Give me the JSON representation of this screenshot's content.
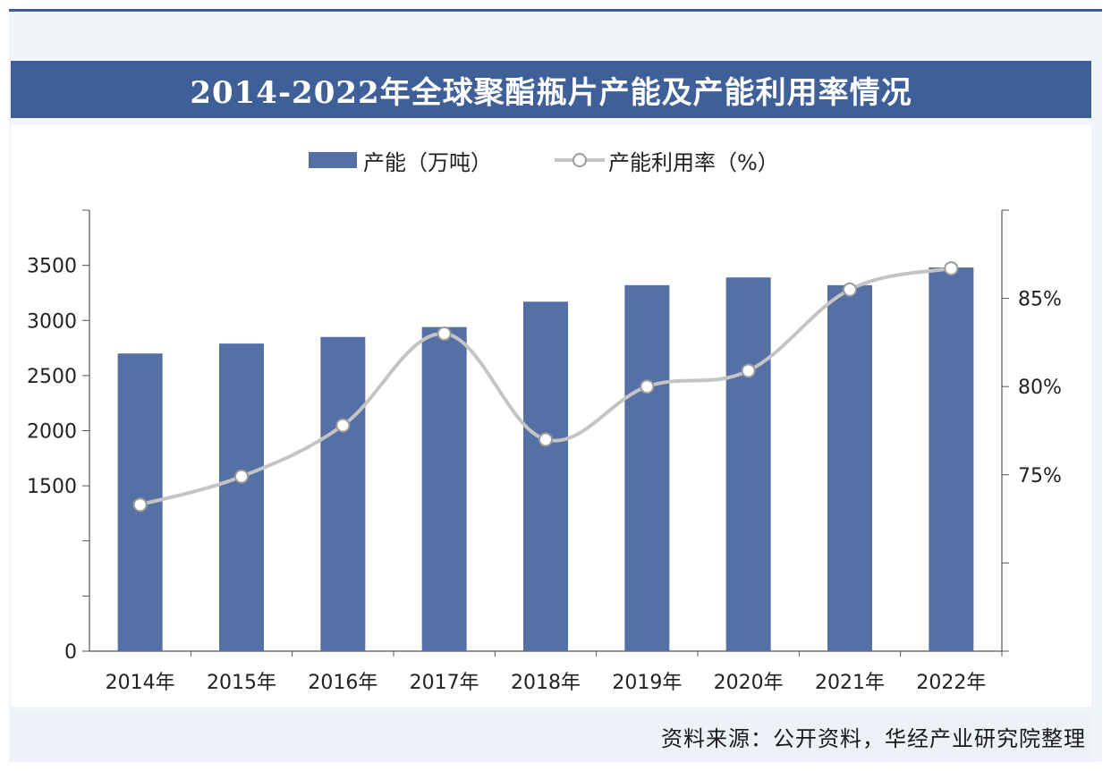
{
  "title": "2014-2022年全球聚酯瓶片产能及产能利用率情况",
  "source": "资料来源：公开资料，华经产业研究院整理",
  "colors": {
    "bar": "#5470a4",
    "line": "#c4c4c4",
    "title_bg": "#3f5f99",
    "axis": "#555555"
  },
  "chart_data": {
    "type": "bar",
    "categories": [
      "2014年",
      "2015年",
      "2016年",
      "2017年",
      "2018年",
      "2019年",
      "2020年",
      "2021年",
      "2022年"
    ],
    "series": [
      {
        "name": "产能（万吨）",
        "type": "bar",
        "axis": "left",
        "values": [
          2700,
          2790,
          2850,
          2940,
          3170,
          3320,
          3390,
          3320,
          3480
        ]
      },
      {
        "name": "产能利用率（%）",
        "type": "line",
        "axis": "right",
        "values": [
          73.3,
          74.9,
          77.8,
          83.0,
          77.0,
          80.0,
          80.9,
          85.5,
          86.7
        ]
      }
    ],
    "y_left": {
      "min": 0,
      "max": 4000,
      "ticks": [
        0,
        500,
        1000,
        1500,
        2000,
        2500,
        3000,
        3500,
        4000
      ],
      "tick_labels": [
        "0",
        "",
        "",
        "1500",
        "2000",
        "2500",
        "3000",
        "3500",
        ""
      ]
    },
    "y_right": {
      "min": 65,
      "max": 90,
      "ticks": [
        65,
        70,
        75,
        80,
        85,
        90
      ],
      "tick_labels": [
        "",
        "",
        "75%",
        "80%",
        "85%",
        ""
      ]
    },
    "legend_position": "top-center",
    "grid": false
  }
}
